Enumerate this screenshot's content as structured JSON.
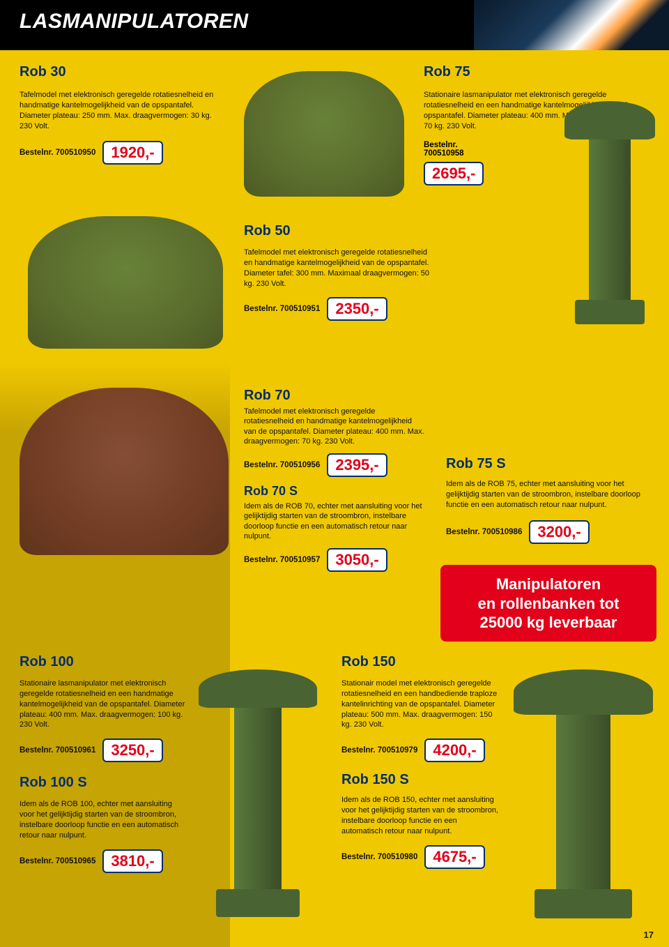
{
  "page": {
    "title": "LASMANIPULATOREN",
    "number": "17",
    "colors": {
      "bg": "#f0c800",
      "accent": "#002d6e",
      "price": "#e2001a",
      "banner": "#e2001a"
    }
  },
  "rob30": {
    "title": "Rob 30",
    "desc": "Tafelmodel met elektronisch geregelde rotatiesnelheid en handmatige kantelmogelijkheid van de opspantafel. Diameter plateau: 250 mm. Max. draagvermogen: 30 kg. 230 Volt.",
    "order": "Bestelnr. 700510950",
    "price": "1920,-"
  },
  "rob75": {
    "title": "Rob 75",
    "desc": "Stationaire lasmanipulator met elektronisch geregelde rotatiesnelheid en een handmatige kantelmogelijkheid van de opspantafel. Diameter plateau: 400 mm. Max. draagvermogen: 70 kg. 230 Volt.",
    "order1": "Bestelnr.",
    "order2": "700510958",
    "price": "2695,-"
  },
  "rob50": {
    "title": "Rob 50",
    "desc": "Tafelmodel met elektronisch geregelde rotatiesnelheid en handmatige kantelmogelijkheid van de opspantafel. Diameter tafel: 300 mm. Maximaal draagvermogen: 50 kg. 230 Volt.",
    "order": "Bestelnr. 700510951",
    "price": "2350,-"
  },
  "rob70": {
    "title": "Rob 70",
    "desc": "Tafelmodel met elektronisch geregelde rotatiesnelheid en handmatige kantelmogelijkheid van de opspantafel. Diameter plateau: 400 mm. Max. draagvermogen: 70 kg. 230 Volt.",
    "order": "Bestelnr. 700510956",
    "price": "2395,-",
    "s_title": "Rob 70 S",
    "s_desc": "Idem als de ROB 70, echter met aansluiting voor het gelijktijdig starten van de stroombron, instelbare doorloop functie en een automatisch retour naar nulpunt.",
    "s_order": "Bestelnr. 700510957",
    "s_price": "3050,-"
  },
  "rob75s": {
    "title": "Rob 75 S",
    "desc": "Idem als de ROB 75, echter met aansluiting voor het gelijktijdig starten van de stroombron, instelbare doorloop functie en een automatisch retour naar nulpunt.",
    "order": "Bestelnr. 700510986",
    "price": "3200,-"
  },
  "banner": {
    "line1": "Manipulatoren",
    "line2": "en rollenbanken tot",
    "line3": "25000 kg leverbaar"
  },
  "rob100": {
    "title": "Rob 100",
    "desc": "Stationaire lasmanipulator met elektronisch geregelde rotatiesnelheid en een handmatige kantelmogelijkheid van de opspantafel. Diameter plateau: 400 mm. Max. draagvermogen: 100 kg. 230 Volt.",
    "order": "Bestelnr. 700510961",
    "price": "3250,-",
    "s_title": "Rob 100 S",
    "s_desc": "Idem als de ROB 100, echter met aansluiting voor het gelijktijdig starten van de stroombron, instelbare doorloop functie en een automatisch retour naar nulpunt.",
    "s_order": "Bestelnr. 700510965",
    "s_price": "3810,-"
  },
  "rob150": {
    "title": "Rob 150",
    "desc": "Stationair model met elektronisch geregelde rotatiesnelheid en een handbediende traploze kantelinrichting van de opspantafel. Diameter plateau: 500 mm. Max. draagvermogen: 150 kg. 230 Volt.",
    "order": "Bestelnr. 700510979",
    "price": "4200,-",
    "s_title": "Rob 150 S",
    "s_desc": "Idem als de ROB 150, echter met aansluiting voor het gelijktijdig starten van de stroombron, instelbare doorloop functie en een automatisch retour naar nulpunt.",
    "s_order": "Bestelnr. 700510980",
    "s_price": "4675,-"
  }
}
